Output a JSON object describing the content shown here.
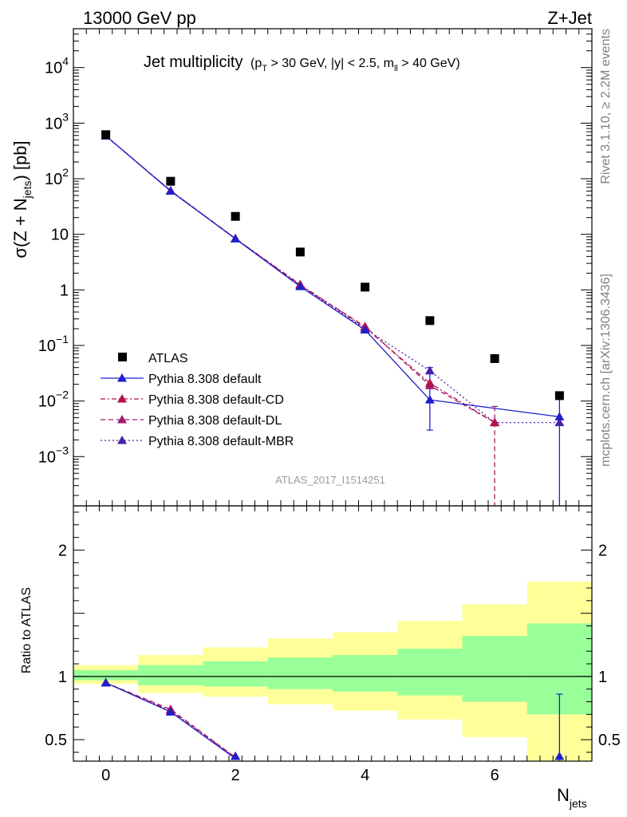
{
  "header": {
    "left": "13000 GeV pp",
    "right": "Z+Jet"
  },
  "title": {
    "main": "Jet multiplicity",
    "cuts_open": "(p",
    "cuts_pt_sub": "T",
    "cuts_mid": " > 30 GeV, |y| < 2.5, m",
    "cuts_m_sub": "ll",
    "cuts_close": " > 40 GeV)"
  },
  "ylabel_main": {
    "prefix": "σ(Z + N",
    "sub": "jets",
    "suffix": ") [pb]"
  },
  "ylabel_ratio": "Ratio to ATLAS",
  "xlabel": {
    "base": "N",
    "sub": "jets"
  },
  "analysis_id": "ATLAS_2017_I1514251",
  "side_text": {
    "rivet": "Rivet 3.1.10, ≥ 2.2M events",
    "mcplots": "mcplots.cern.ch [arXiv:1306.3436]"
  },
  "main_ticks": {
    "log_labels": [
      {
        "v": 10000,
        "base": "10",
        "exp": "4"
      },
      {
        "v": 1000,
        "base": "10",
        "exp": "3"
      },
      {
        "v": 100,
        "base": "10",
        "exp": "2"
      },
      {
        "v": 10,
        "base": "10",
        "exp": ""
      },
      {
        "v": 1,
        "base": "1",
        "exp": ""
      },
      {
        "v": 0.1,
        "base": "10",
        "exp": "−1"
      },
      {
        "v": 0.01,
        "base": "10",
        "exp": "−2"
      },
      {
        "v": 0.001,
        "base": "10",
        "exp": "−3"
      }
    ]
  },
  "ratio_ticks": {
    "labels": [
      {
        "v": 2,
        "t": "2"
      },
      {
        "v": 1,
        "t": "1"
      },
      {
        "v": 0.5,
        "t": "0.5"
      }
    ]
  },
  "x_ticks": [
    {
      "v": 0,
      "t": "0"
    },
    {
      "v": 2,
      "t": "2"
    },
    {
      "v": 4,
      "t": "4"
    },
    {
      "v": 6,
      "t": "6"
    }
  ],
  "chart_data": {
    "type": "line",
    "x_range": [
      -0.5,
      7.5
    ],
    "y_range": [
      0.00013,
      50000
    ],
    "y_scale": "log",
    "ratio_range": [
      0.33,
      2.35
    ],
    "legend_position": "bottom-left",
    "series": [
      {
        "name": "ATLAS",
        "marker": "square",
        "color": "#000000",
        "x": [
          0,
          1,
          2,
          3,
          4,
          5,
          6,
          7
        ],
        "y": [
          620,
          90,
          21,
          4.8,
          1.12,
          0.28,
          0.058,
          0.0125
        ],
        "ratio_band_inner": [
          [
            0.97,
            1.05
          ],
          [
            0.93,
            1.09
          ],
          [
            0.92,
            1.12
          ],
          [
            0.9,
            1.15
          ],
          [
            0.88,
            1.17
          ],
          [
            0.85,
            1.22
          ],
          [
            0.8,
            1.32
          ],
          [
            0.7,
            1.42
          ]
        ],
        "ratio_band_outer": [
          [
            0.94,
            1.09
          ],
          [
            0.87,
            1.17
          ],
          [
            0.84,
            1.23
          ],
          [
            0.78,
            1.3
          ],
          [
            0.73,
            1.35
          ],
          [
            0.66,
            1.44
          ],
          [
            0.52,
            1.57
          ],
          [
            0.33,
            1.75
          ]
        ]
      },
      {
        "name": "Pythia 8.308 default",
        "marker": "triangle",
        "color": "#1f1fcc",
        "dash": "",
        "x": [
          0,
          1,
          2,
          3,
          4,
          5,
          6,
          7
        ],
        "y": [
          590,
          60,
          8.3,
          1.15,
          0.19,
          0.0105,
          null,
          0.0052
        ],
        "yerr_low": [
          null,
          null,
          null,
          null,
          null,
          0.003,
          null,
          0.00013
        ],
        "yerr_high": [
          null,
          null,
          null,
          null,
          null,
          0.04,
          null,
          0.011
        ],
        "ratio": [
          0.95,
          0.72,
          0.35,
          null,
          null,
          null,
          null,
          0.34
        ],
        "ratio_err": [
          null,
          null,
          null,
          null,
          null,
          null,
          null,
          [
            0.33,
            0.86
          ]
        ]
      },
      {
        "name": "Pythia 8.308 default-CD",
        "marker": "triangle",
        "color": "#b0134a",
        "dash": "6,3,2,3",
        "x": [
          0,
          1,
          2,
          3,
          4,
          5,
          6,
          7
        ],
        "y": [
          590,
          61,
          8.4,
          1.25,
          0.21,
          0.021,
          0.0041,
          null
        ],
        "ratio": [
          0.95,
          0.73,
          0.36,
          null,
          null,
          null,
          null,
          null
        ]
      },
      {
        "name": "Pythia 8.308 default-DL",
        "marker": "triangle",
        "color": "#a01c6b",
        "dash": "6,4",
        "x": [
          0,
          1,
          2,
          3,
          4,
          5,
          6,
          7
        ],
        "y": [
          590,
          61,
          8.4,
          1.2,
          0.22,
          0.019,
          0.0041,
          null
        ],
        "yerr_low": [
          null,
          null,
          null,
          null,
          null,
          null,
          0.00013,
          null
        ],
        "yerr_high": [
          null,
          null,
          null,
          null,
          null,
          null,
          0.008,
          null
        ],
        "ratio": [
          0.95,
          0.74,
          0.36,
          null,
          null,
          null,
          null,
          null
        ]
      },
      {
        "name": "Pythia 8.308 default-MBR",
        "marker": "triangle",
        "color": "#4a1faa",
        "dash": "2,3",
        "x": [
          0,
          1,
          2,
          3,
          4,
          5,
          6,
          7
        ],
        "y": [
          590,
          60,
          8.3,
          1.2,
          0.2,
          0.035,
          0.0041,
          0.0041
        ],
        "ratio": [
          0.95,
          0.72,
          0.35,
          null,
          null,
          null,
          null,
          null
        ]
      }
    ]
  }
}
